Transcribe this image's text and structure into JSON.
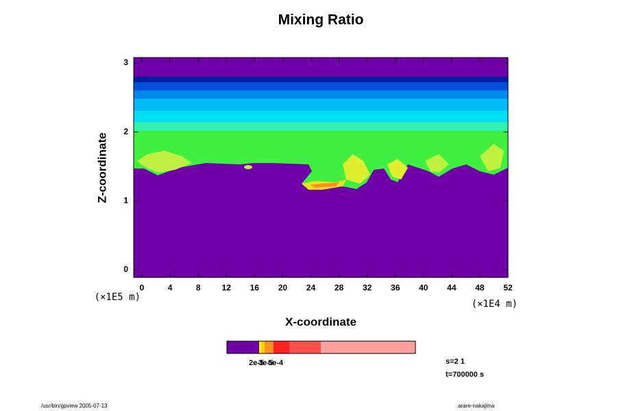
{
  "chart_data": {
    "type": "contour",
    "title": "Mixing Ratio",
    "x_label": "X-coordinate",
    "y_label": "Z-coordinate",
    "x_unit": "(×1E4 m)",
    "y_unit": "(×1E5 m)",
    "xlim": [
      -1.17,
      52
    ],
    "ylim": [
      -0.11,
      3.08
    ],
    "xticks": [
      0,
      4,
      8,
      12,
      16,
      20,
      24,
      28,
      32,
      36,
      40,
      44,
      48,
      52
    ],
    "yticks": [
      0,
      1,
      2,
      3
    ],
    "colorbar": {
      "colors": [
        "#7000a8",
        "#ffff00",
        "#ffd000",
        "#ff9020",
        "#ff2020",
        "#ff5050",
        "#ffa0a0"
      ],
      "labels": [
        "2e-5",
        "3e-5",
        "5e-4"
      ]
    },
    "annotations": [
      "s=2 1",
      "t=700000 s"
    ],
    "footer_left": "/usr/bin/gpview 2005-07-13",
    "footer_right": "arare-nakajima"
  }
}
